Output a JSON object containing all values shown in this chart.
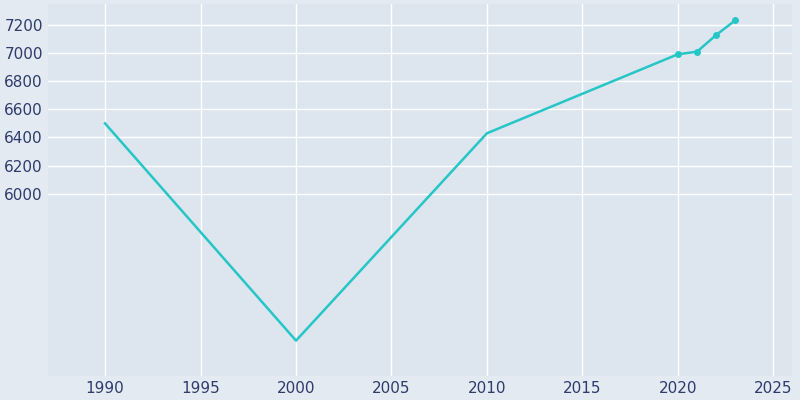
{
  "years": [
    1990,
    2000,
    2010,
    2020,
    2021,
    2022,
    2023
  ],
  "population": [
    6500,
    4952,
    6430,
    6993,
    7011,
    7130,
    7234
  ],
  "marker_years": [
    2020,
    2021,
    2022,
    2023
  ],
  "marker_population": [
    6993,
    7011,
    7130,
    7234
  ],
  "line_color": "#26C6C6",
  "marker_color": "#26C6C6",
  "background_color": "#E3EAF2",
  "plot_background_color": "#DDE5EF",
  "grid_color": "#FFFFFF",
  "text_color": "#2E3B6B",
  "xlim": [
    1987,
    2026
  ],
  "ylim": [
    4700,
    7350
  ],
  "xticks": [
    1990,
    1995,
    2000,
    2005,
    2010,
    2015,
    2020,
    2025
  ],
  "yticks": [
    6000,
    6200,
    6400,
    6600,
    6800,
    7000,
    7200
  ],
  "tick_fontsize": 11,
  "marker_size": 4,
  "line_width": 1.8
}
